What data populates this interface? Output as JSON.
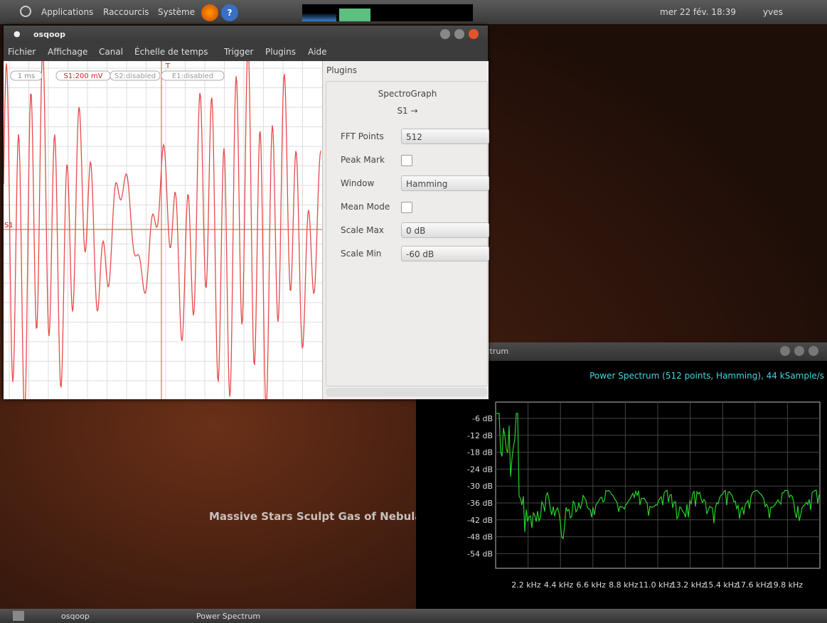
{
  "top_panel": {
    "menus": [
      "Applications",
      "Raccourcis",
      "Système"
    ],
    "clock": "mer 22 fév. 18:39",
    "user": "yves"
  },
  "osqoop": {
    "title": "osqoop",
    "menu": [
      "Fichier",
      "Affichage",
      "Canal",
      "Échelle de temps",
      "Trigger",
      "Plugins",
      "Aide"
    ],
    "scope": {
      "timebase": "1 ms",
      "channels": [
        "S1:200 mV",
        "S2:disabled",
        "E1:disabled"
      ],
      "trigger_marker": "T",
      "channel_marker": "S1"
    },
    "plugins": {
      "header": "Plugins",
      "name": "SpectroGraph",
      "input": "S1 →",
      "fields": [
        {
          "label": "FFT Points",
          "value": "512"
        },
        {
          "label": "Peak Mark",
          "checked": false
        },
        {
          "label": "Window",
          "value": "Hamming"
        },
        {
          "label": "Mean Mode",
          "checked": false
        },
        {
          "label": "Scale Max",
          "value": "0 dB"
        },
        {
          "label": "Scale Min",
          "value": "-60 dB"
        }
      ]
    }
  },
  "desktop": {
    "caption": "Massive Stars Sculpt Gas of Nebula"
  },
  "spectrum": {
    "title": "Power Spectrum",
    "header": "Power Spectrum (512 points, Hamming), 44 kSample/s",
    "y_labels": [
      "-6 dB",
      "-12 dB",
      "-18 dB",
      "-24 dB",
      "-30 dB",
      "-36 dB",
      "-42 dB",
      "-48 dB",
      "-54 dB"
    ],
    "x_labels": [
      "2.2 kHz",
      "4.4 kHz",
      "6.6 kHz",
      "8.8 kHz",
      "11.0 kHz",
      "13.2 kHz",
      "15.4 kHz",
      "17.6 kHz",
      "19.8 kHz"
    ]
  },
  "taskbar": {
    "tasks": [
      "osqoop",
      "Power Spectrum"
    ]
  }
}
